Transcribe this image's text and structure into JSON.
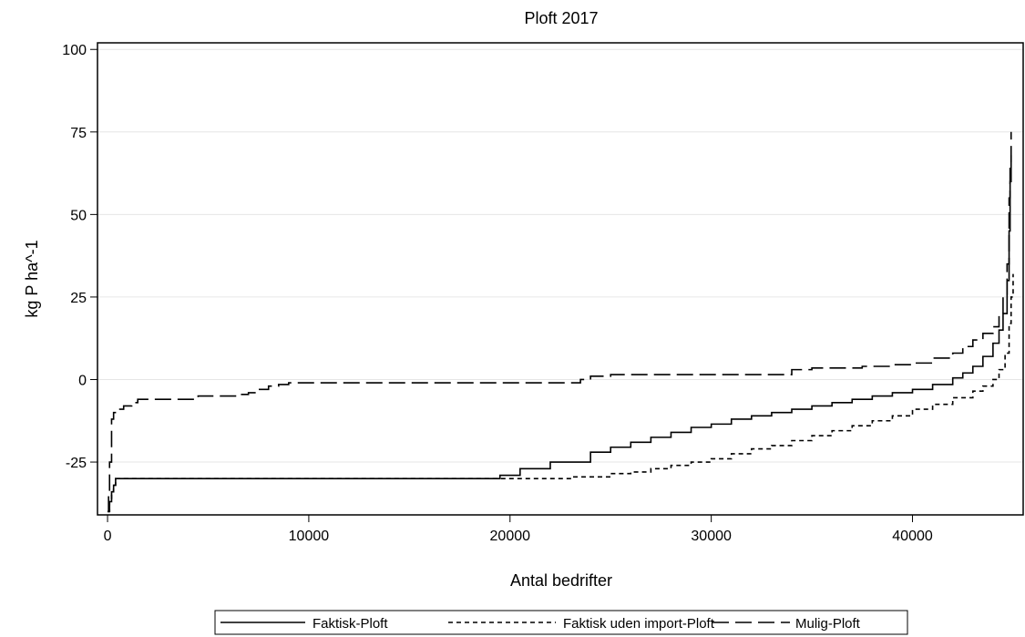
{
  "chart_data": {
    "type": "line",
    "title": "Ploft 2017",
    "xlabel": "Antal bedrifter",
    "ylabel": "kg P ha^-1",
    "xlim": [
      -500,
      45500
    ],
    "ylim": [
      -41,
      102
    ],
    "xticks": [
      0,
      10000,
      20000,
      30000,
      40000
    ],
    "xtick_labels": [
      "0",
      "10000",
      "20000",
      "30000",
      "40000"
    ],
    "yticks": [
      -25,
      0,
      25,
      50,
      75,
      100
    ],
    "ytick_labels": [
      "-25",
      "0",
      "25",
      "50",
      "75",
      "100"
    ],
    "grid": "horizontal",
    "legend": "bottom",
    "series": [
      {
        "name": "Faktisk-Ploft",
        "style": "solid",
        "color": "#000000",
        "x": [
          0,
          100,
          200,
          300,
          400,
          1000,
          5000,
          10000,
          15000,
          18500,
          19500,
          20500,
          22000,
          24000,
          25000,
          26000,
          27000,
          28000,
          29000,
          30000,
          31000,
          32000,
          33000,
          34000,
          35000,
          36000,
          37000,
          38000,
          39000,
          40000,
          41000,
          42000,
          42500,
          43000,
          43500,
          44000,
          44300,
          44500,
          44700,
          44800,
          44850,
          44900
        ],
        "y": [
          -40,
          -37,
          -34,
          -32,
          -30,
          -30,
          -30,
          -30,
          -30,
          -30,
          -29,
          -27,
          -25,
          -22,
          -20.5,
          -19,
          -17.5,
          -16,
          -14.5,
          -13.5,
          -12,
          -11,
          -10,
          -9,
          -8,
          -7,
          -6,
          -5,
          -4,
          -3,
          -1.5,
          0.5,
          2,
          4,
          7,
          11,
          15,
          20,
          30,
          45,
          60,
          68
        ]
      },
      {
        "name": "Faktisk uden import-Ploft",
        "style": "dotted",
        "color": "#000000",
        "x": [
          0,
          100,
          200,
          300,
          400,
          1000,
          5000,
          10000,
          15000,
          20000,
          23000,
          25000,
          26000,
          27000,
          28000,
          29000,
          30000,
          31000,
          32000,
          33000,
          34000,
          35000,
          36000,
          37000,
          38000,
          39000,
          40000,
          41000,
          42000,
          43000,
          43500,
          44000,
          44300,
          44600,
          44800,
          44900,
          45000
        ],
        "y": [
          -40,
          -37,
          -34,
          -32,
          -30,
          -30,
          -30,
          -30,
          -30,
          -30,
          -29.5,
          -28.5,
          -28,
          -27,
          -26,
          -25,
          -24,
          -22.5,
          -21,
          -20,
          -18.5,
          -17,
          -15.5,
          -14,
          -12.5,
          -11,
          -9,
          -7.5,
          -5.5,
          -3.5,
          -2,
          0,
          3,
          8,
          17,
          25,
          32
        ]
      },
      {
        "name": "Mulig-Ploft",
        "style": "dashed",
        "color": "#000000",
        "x": [
          0,
          50,
          100,
          200,
          300,
          500,
          800,
          1100,
          1200,
          1500,
          2500,
          3500,
          4500,
          5500,
          6500,
          7000,
          7500,
          8000,
          8500,
          9000,
          10000,
          15000,
          20000,
          23000,
          23500,
          24000,
          25000,
          30000,
          33000,
          34000,
          35000,
          36000,
          37500,
          38000,
          39000,
          40000,
          41000,
          42000,
          42500,
          43000,
          43500,
          44000,
          44300,
          44500,
          44700,
          44800,
          44850,
          44900
        ],
        "y": [
          -40,
          -35,
          -25,
          -12,
          -10,
          -9,
          -8,
          -8,
          -7,
          -6,
          -6,
          -6,
          -5,
          -5,
          -4.5,
          -4,
          -3,
          -2,
          -1.5,
          -1,
          -1,
          -1,
          -1,
          -1,
          0,
          1,
          1.5,
          1.5,
          1.5,
          3,
          3.5,
          3.5,
          4,
          4,
          4.5,
          5,
          6.5,
          8,
          10,
          12,
          14,
          16,
          20,
          25,
          35,
          55,
          65,
          75
        ]
      }
    ]
  }
}
